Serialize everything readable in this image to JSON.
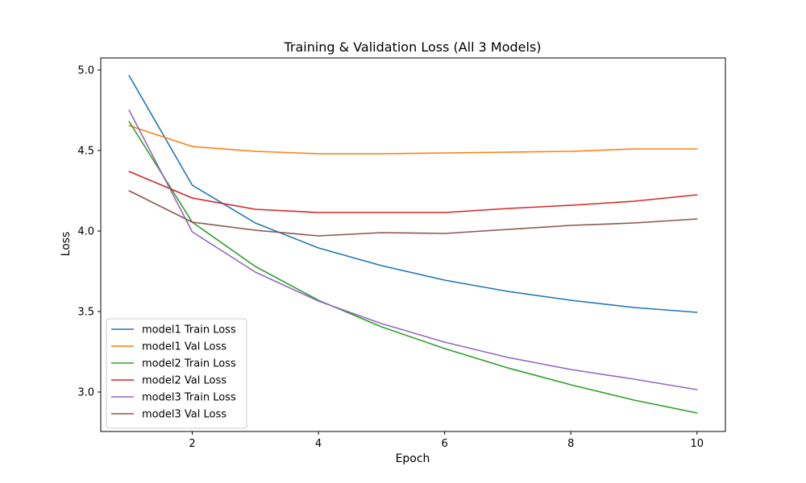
{
  "chart_data": {
    "type": "line",
    "title": "Training & Validation Loss (All 3 Models)",
    "xlabel": "Epoch",
    "ylabel": "Loss",
    "xlim": [
      0.55,
      10.45
    ],
    "ylim": [
      2.755,
      5.075
    ],
    "xticks": [
      2,
      4,
      6,
      8,
      10
    ],
    "xtick_labels": [
      "2",
      "4",
      "6",
      "8",
      "10"
    ],
    "yticks": [
      3.0,
      3.5,
      4.0,
      4.5,
      5.0
    ],
    "ytick_labels": [
      "3.0",
      "3.5",
      "4.0",
      "4.5",
      "5.0"
    ],
    "grid": false,
    "legend_position": "lower-left",
    "x": [
      1,
      2,
      3,
      4,
      5,
      6,
      7,
      8,
      9,
      10
    ],
    "series": [
      {
        "name": "model1 Train Loss",
        "color": "#1f77b4",
        "values": [
          4.965,
          4.285,
          4.05,
          3.895,
          3.785,
          3.695,
          3.625,
          3.57,
          3.525,
          3.495
        ]
      },
      {
        "name": "model1 Val Loss",
        "color": "#ff7f0e",
        "values": [
          4.655,
          4.525,
          4.495,
          4.48,
          4.48,
          4.485,
          4.49,
          4.495,
          4.51,
          4.51
        ]
      },
      {
        "name": "model2 Train Loss",
        "color": "#2ca02c",
        "values": [
          4.68,
          4.055,
          3.78,
          3.57,
          3.405,
          3.27,
          3.15,
          3.045,
          2.95,
          2.87
        ]
      },
      {
        "name": "model2 Val Loss",
        "color": "#d62728",
        "values": [
          4.37,
          4.205,
          4.135,
          4.115,
          4.115,
          4.115,
          4.14,
          4.16,
          4.185,
          4.225
        ]
      },
      {
        "name": "model3 Train Loss",
        "color": "#9467bd",
        "values": [
          4.75,
          3.995,
          3.745,
          3.565,
          3.425,
          3.31,
          3.215,
          3.14,
          3.08,
          3.015
        ]
      },
      {
        "name": "model3 Val Loss",
        "color": "#8c564b",
        "values": [
          4.25,
          4.055,
          4.005,
          3.97,
          3.99,
          3.985,
          4.01,
          4.035,
          4.05,
          4.075
        ]
      }
    ]
  }
}
